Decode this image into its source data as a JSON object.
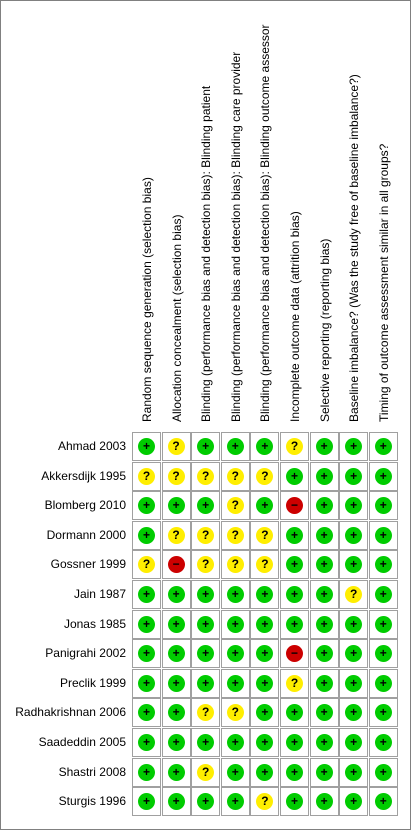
{
  "columns": [
    "Random sequence generation (selection bias)",
    "Allocation concealment (selection bias)",
    "Blinding (performance bias and detection bias): Blinding patient",
    "Blinding (performance bias and detection bias): Blinding care provider",
    "Blinding (performance bias and detection bias): Blinding outcome assessor",
    "Incomplete outcome data (attrition bias)",
    "Selective reporting (reporting bias)",
    "Baseline imbalance? (Was the study free of baseline imbalance?)",
    "Timing of outcome assessment similar in all groups?"
  ],
  "symbols": {
    "low": "+",
    "unclear": "?",
    "high": "−"
  },
  "colors": {
    "low": "#00cc00",
    "unclear": "#ffee00",
    "high": "#cc0000",
    "border": "#a0a0a0"
  },
  "rows": [
    {
      "study": "Ahmad 2003",
      "ratings": [
        "low",
        "unclear",
        "low",
        "low",
        "low",
        "unclear",
        "low",
        "low",
        "low"
      ]
    },
    {
      "study": "Akkersdijk 1995",
      "ratings": [
        "unclear",
        "unclear",
        "unclear",
        "unclear",
        "unclear",
        "low",
        "low",
        "low",
        "low"
      ]
    },
    {
      "study": "Blomberg 2010",
      "ratings": [
        "low",
        "low",
        "low",
        "unclear",
        "low",
        "high",
        "low",
        "low",
        "low"
      ]
    },
    {
      "study": "Dormann 2000",
      "ratings": [
        "low",
        "unclear",
        "unclear",
        "unclear",
        "unclear",
        "low",
        "low",
        "low",
        "low"
      ]
    },
    {
      "study": "Gossner 1999",
      "ratings": [
        "unclear",
        "high",
        "unclear",
        "unclear",
        "unclear",
        "low",
        "low",
        "low",
        "low"
      ]
    },
    {
      "study": "Jain 1987",
      "ratings": [
        "low",
        "low",
        "low",
        "low",
        "low",
        "low",
        "low",
        "unclear",
        "low"
      ]
    },
    {
      "study": "Jonas 1985",
      "ratings": [
        "low",
        "low",
        "low",
        "low",
        "low",
        "low",
        "low",
        "low",
        "low"
      ]
    },
    {
      "study": "Panigrahi 2002",
      "ratings": [
        "low",
        "low",
        "low",
        "low",
        "low",
        "high",
        "low",
        "low",
        "low"
      ]
    },
    {
      "study": "Preclik 1999",
      "ratings": [
        "low",
        "low",
        "low",
        "low",
        "low",
        "unclear",
        "low",
        "low",
        "low"
      ]
    },
    {
      "study": "Radhakrishnan 2006",
      "ratings": [
        "low",
        "low",
        "unclear",
        "unclear",
        "low",
        "low",
        "low",
        "low",
        "low"
      ]
    },
    {
      "study": "Saadeddin 2005",
      "ratings": [
        "low",
        "low",
        "low",
        "low",
        "low",
        "low",
        "low",
        "low",
        "low"
      ]
    },
    {
      "study": "Shastri 2008",
      "ratings": [
        "low",
        "low",
        "unclear",
        "low",
        "low",
        "low",
        "low",
        "low",
        "low"
      ]
    },
    {
      "study": "Sturgis 1996",
      "ratings": [
        "low",
        "low",
        "low",
        "low",
        "unclear",
        "low",
        "low",
        "low",
        "low"
      ]
    }
  ]
}
